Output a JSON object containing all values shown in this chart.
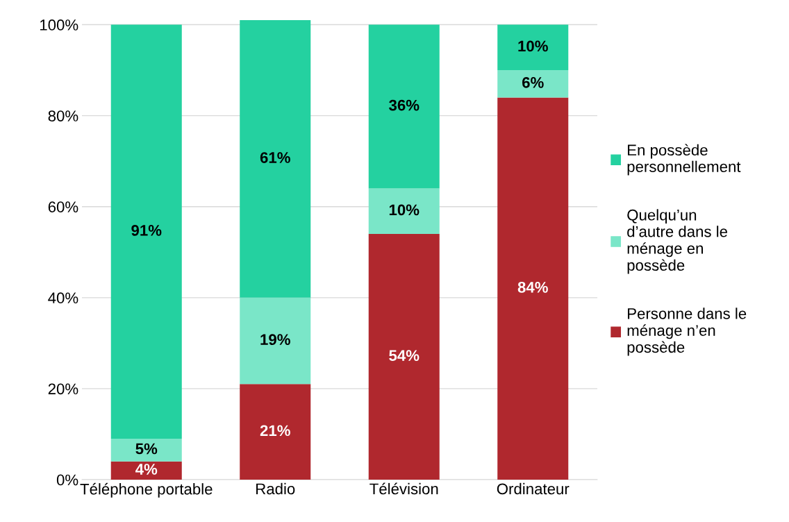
{
  "chart_data": {
    "type": "bar",
    "stacked": true,
    "categories": [
      "Téléphone portable",
      "Radio",
      "Télévision",
      "Ordinateur"
    ],
    "series": [
      {
        "name": "Personne dans le ménage n’en possède",
        "color": "#b0282e",
        "values": [
          4,
          21,
          54,
          84
        ],
        "value_labels": [
          "4%",
          "21%",
          "54%",
          "84%"
        ]
      },
      {
        "name": "Quelqu’un d’autre dans le ménage en possède",
        "color": "#7ae6c8",
        "values": [
          5,
          19,
          10,
          6
        ],
        "value_labels": [
          "5%",
          "19%",
          "10%",
          "6%"
        ]
      },
      {
        "name": "En possède personnellement",
        "color": "#24d1a0",
        "values": [
          91,
          61,
          36,
          10
        ],
        "value_labels": [
          "91%",
          "61%",
          "36%",
          "10%"
        ]
      }
    ],
    "ylim": [
      0,
      101
    ],
    "yticks": [
      {
        "value": 0,
        "label": "0%"
      },
      {
        "value": 20,
        "label": "20%"
      },
      {
        "value": 40,
        "label": "40%"
      },
      {
        "value": 60,
        "label": "60%"
      },
      {
        "value": 80,
        "label": "80%"
      },
      {
        "value": 100,
        "label": "100%"
      }
    ],
    "grid": "y",
    "legend": "right"
  }
}
